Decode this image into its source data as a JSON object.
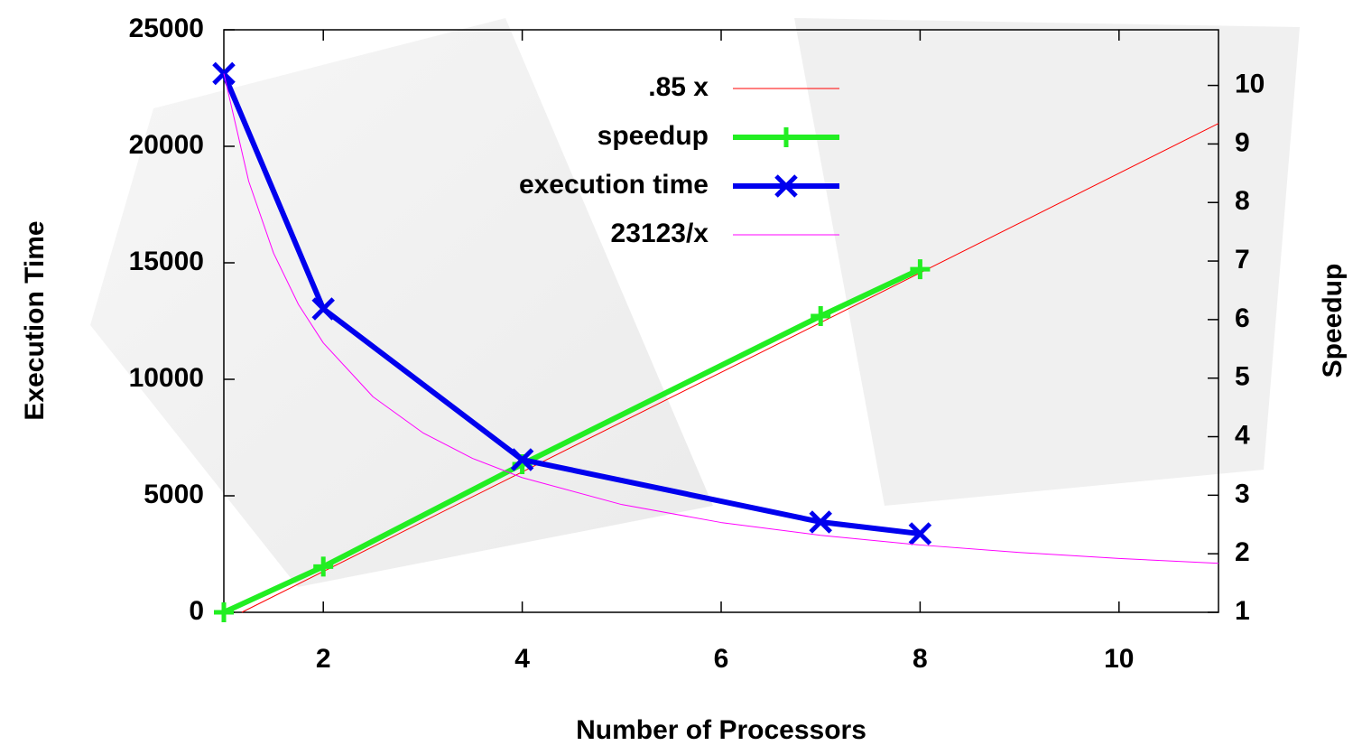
{
  "chart_data": {
    "type": "line",
    "xlabel": "Number of Processors",
    "ylabel": "Execution Time",
    "y2label": "Speedup",
    "xlim": [
      1,
      11
    ],
    "xticks": [
      2,
      4,
      6,
      8,
      10
    ],
    "ylim": [
      0,
      25000
    ],
    "yticks": [
      0,
      5000,
      10000,
      15000,
      20000,
      25000
    ],
    "y2lim": [
      1,
      10.95
    ],
    "y2ticks": [
      1,
      2,
      3,
      4,
      5,
      6,
      7,
      8,
      9,
      10
    ],
    "legend": "top",
    "series": [
      {
        "name": ".85 x",
        "color": "#ff0000",
        "axis": "y2",
        "width": 1,
        "marker": null,
        "x": [
          1.18,
          11
        ],
        "values": [
          1,
          9.35
        ]
      },
      {
        "name": "speedup",
        "color": "#22ee22",
        "axis": "y2",
        "width": 6,
        "marker": "plus",
        "x": [
          1,
          2,
          4,
          7,
          8
        ],
        "values": [
          1,
          1.78,
          3.53,
          6.06,
          6.86
        ]
      },
      {
        "name": "execution time",
        "color": "#0000ee",
        "axis": "y",
        "width": 6,
        "marker": "cross",
        "x": [
          1,
          2,
          4,
          7,
          8
        ],
        "values": [
          23123,
          13023,
          6550,
          3876,
          3372
        ]
      },
      {
        "name": "23123/x",
        "color": "#ff00ff",
        "axis": "y",
        "width": 1,
        "marker": null,
        "x": [
          1,
          1.25,
          1.5,
          1.75,
          2,
          2.5,
          3,
          3.5,
          4,
          5,
          6,
          7,
          8,
          9,
          10,
          11
        ],
        "values": [
          23123,
          18498,
          15415,
          13213,
          11562,
          9249,
          7708,
          6607,
          5781,
          4625,
          3854,
          3303,
          2890,
          2569,
          2312,
          2102
        ]
      }
    ]
  }
}
